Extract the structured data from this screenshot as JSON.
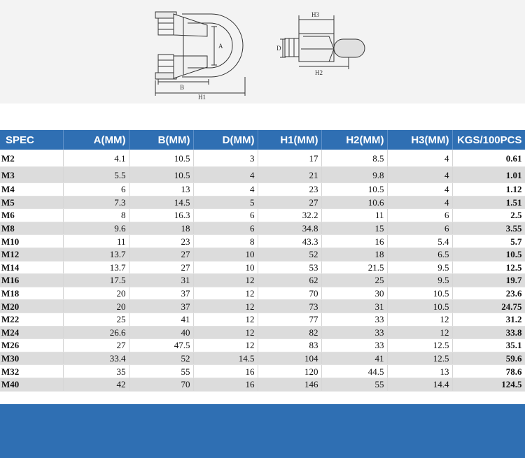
{
  "diagram": {
    "labels": {
      "a": "A",
      "b": "B",
      "h1": "H1",
      "d": "D",
      "h2": "H2",
      "h3": "H3"
    }
  },
  "table": {
    "headers": [
      "SPEC",
      "A(MM)",
      "B(MM)",
      "D(MM)",
      "H1(MM)",
      "H2(MM)",
      "H3(MM)",
      "KGS/100PCS"
    ],
    "rows": [
      [
        "M2",
        "4.1",
        "10.5",
        "3",
        "17",
        "8.5",
        "4",
        "0.61"
      ],
      [
        "M3",
        "5.5",
        "10.5",
        "4",
        "21",
        "9.8",
        "4",
        "1.01"
      ],
      [
        "M4",
        "6",
        "13",
        "4",
        "23",
        "10.5",
        "4",
        "1.12"
      ],
      [
        "M5",
        "7.3",
        "14.5",
        "5",
        "27",
        "10.6",
        "4",
        "1.51"
      ],
      [
        "M6",
        "8",
        "16.3",
        "6",
        "32.2",
        "11",
        "6",
        "2.5"
      ],
      [
        "M8",
        "9.6",
        "18",
        "6",
        "34.8",
        "15",
        "6",
        "3.55"
      ],
      [
        "M10",
        "11",
        "23",
        "8",
        "43.3",
        "16",
        "5.4",
        "5.7"
      ],
      [
        "M12",
        "13.7",
        "27",
        "10",
        "52",
        "18",
        "6.5",
        "10.5"
      ],
      [
        "M14",
        "13.7",
        "27",
        "10",
        "53",
        "21.5",
        "9.5",
        "12.5"
      ],
      [
        "M16",
        "17.5",
        "31",
        "12",
        "62",
        "25",
        "9.5",
        "19.7"
      ],
      [
        "M18",
        "20",
        "37",
        "12",
        "70",
        "30",
        "10.5",
        "23.6"
      ],
      [
        "M20",
        "20",
        "37",
        "12",
        "73",
        "31",
        "10.5",
        "24.75"
      ],
      [
        "M22",
        "25",
        "41",
        "12",
        "77",
        "33",
        "12",
        "31.2"
      ],
      [
        "M24",
        "26.6",
        "40",
        "12",
        "82",
        "33",
        "12",
        "33.8"
      ],
      [
        "M26",
        "27",
        "47.5",
        "12",
        "83",
        "33",
        "12.5",
        "35.1"
      ],
      [
        "M30",
        "33.4",
        "52",
        "14.5",
        "104",
        "41",
        "12.5",
        "59.6"
      ],
      [
        "M32",
        "35",
        "55",
        "16",
        "120",
        "44.5",
        "13",
        "78.6"
      ],
      [
        "M40",
        "42",
        "70",
        "16",
        "146",
        "55",
        "14.4",
        "124.5"
      ]
    ]
  }
}
